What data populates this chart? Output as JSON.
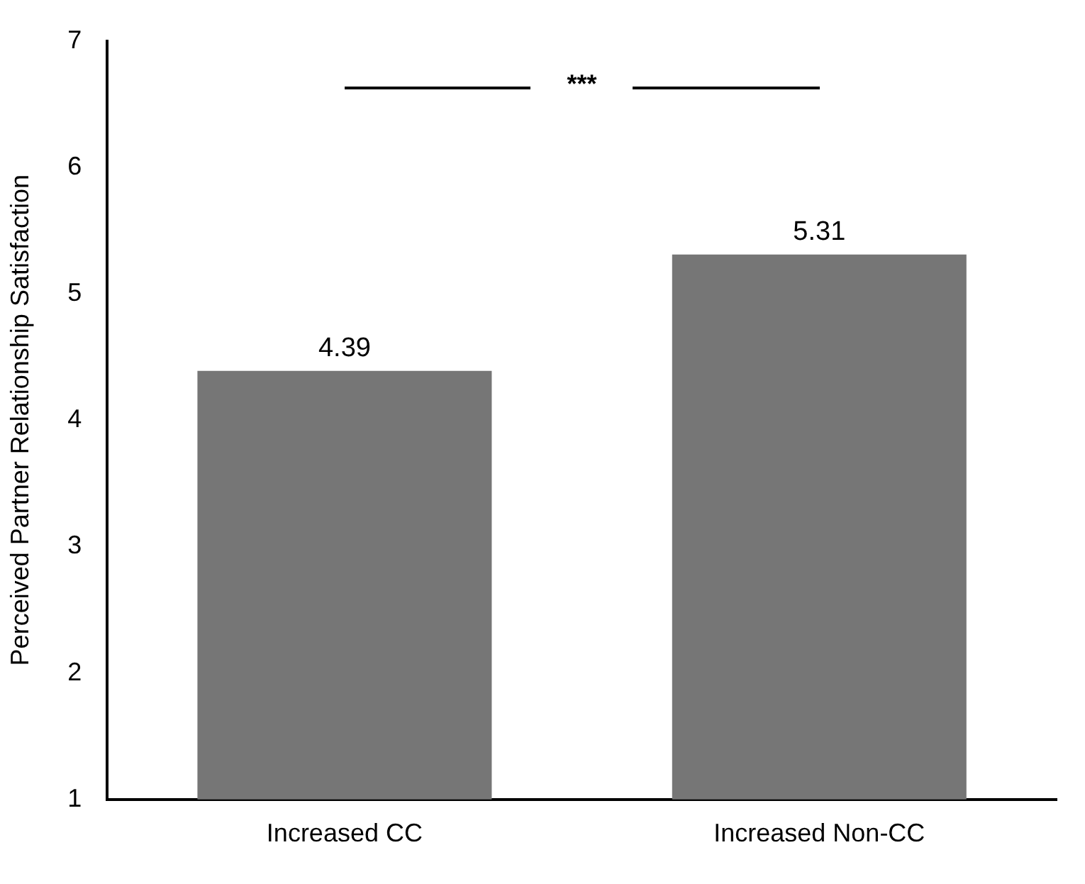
{
  "chart_data": {
    "type": "bar",
    "ylabel": "Perceived Partner Relationship Satisfaction",
    "categories": [
      "Increased CC",
      "Increased Non-CC"
    ],
    "values": [
      4.39,
      5.31
    ],
    "color": "#767676",
    "ylim": [
      1,
      7
    ],
    "yticks": [
      1,
      2,
      3,
      4,
      5,
      6,
      7
    ],
    "grid": false,
    "legend": false,
    "data_labels": true,
    "annotations": [
      "***"
    ]
  }
}
